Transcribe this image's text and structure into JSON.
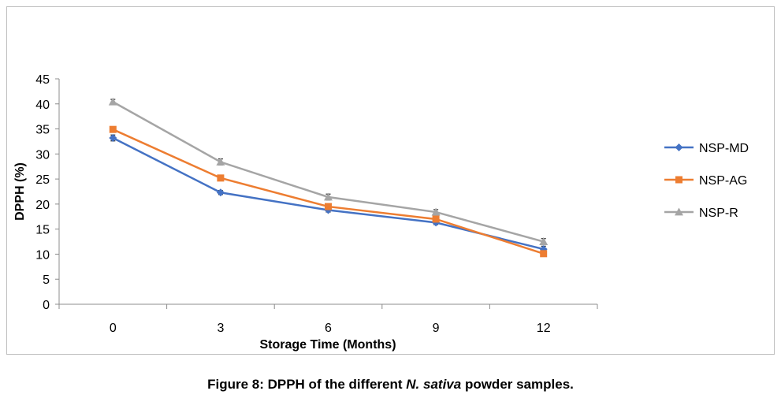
{
  "chart_data": {
    "type": "line",
    "xlabel": "Storage Time (Months)",
    "ylabel": "DPPH (%)",
    "categories": [
      "0",
      "3",
      "6",
      "9",
      "12"
    ],
    "ylim": [
      0,
      45
    ],
    "yticks": [
      0,
      5,
      10,
      15,
      20,
      25,
      30,
      35,
      40,
      45
    ],
    "grid": false,
    "legend_position": "right",
    "error_bars": true,
    "series": [
      {
        "name": "NSP-MD",
        "color": "#4472C4",
        "marker": "diamond",
        "values": [
          33.2,
          22.3,
          18.8,
          16.3,
          11.0
        ],
        "errors": [
          0.6,
          0.4,
          0.4,
          0.4,
          0.6
        ]
      },
      {
        "name": "NSP-AG",
        "color": "#ED7D31",
        "marker": "square",
        "values": [
          34.9,
          25.2,
          19.5,
          17.0,
          10.1
        ],
        "errors": [
          0.5,
          0.4,
          0.5,
          0.4,
          0.5
        ]
      },
      {
        "name": "NSP-R",
        "color": "#A5A5A5",
        "marker": "triangle",
        "values": [
          40.4,
          28.4,
          21.4,
          18.4,
          12.5
        ],
        "errors": [
          0.5,
          0.6,
          0.6,
          0.5,
          0.6
        ]
      }
    ]
  },
  "caption": {
    "prefix": "Figure 8: DPPH of the different ",
    "italic": "N. sativa",
    "suffix": " powder samples."
  }
}
